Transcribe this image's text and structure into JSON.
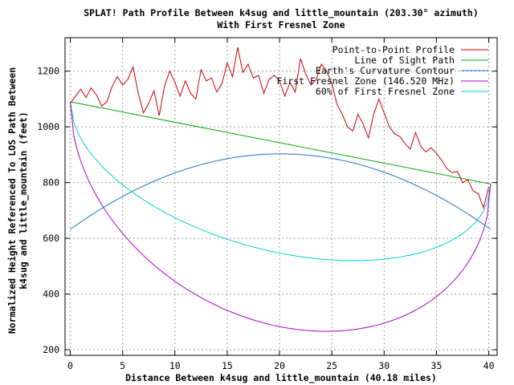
{
  "chart_data": {
    "type": "line",
    "title": "SPLAT! Path Profile Between k4sug and little_mountain (203.30° azimuth)",
    "subtitle": "With First Fresnel Zone",
    "xlabel": "Distance Between k4sug and little_mountain (40.18 miles)",
    "ylabel_lines": [
      "Normalized Height Referenced To LOS Path Between",
      "k4sug and little_mountain (feet)"
    ],
    "xlim": [
      -0.5,
      40.8
    ],
    "ylim": [
      180,
      1320
    ],
    "xticks": [
      0,
      5,
      10,
      15,
      20,
      25,
      30,
      35,
      40
    ],
    "yticks": [
      200,
      400,
      600,
      800,
      1000,
      1200
    ],
    "grid": true,
    "legend_position": "top-right",
    "series": [
      {
        "name": "Point-to-Point Profile",
        "color": "#cc0000",
        "points": [
          [
            0,
            1085
          ],
          [
            0.5,
            1110
          ],
          [
            1,
            1135
          ],
          [
            1.5,
            1105
          ],
          [
            2,
            1140
          ],
          [
            2.5,
            1115
          ],
          [
            3,
            1075
          ],
          [
            3.5,
            1090
          ],
          [
            4,
            1145
          ],
          [
            4.5,
            1180
          ],
          [
            5,
            1150
          ],
          [
            5.5,
            1170
          ],
          [
            6,
            1215
          ],
          [
            6.5,
            1120
          ],
          [
            7,
            1050
          ],
          [
            7.5,
            1085
          ],
          [
            8,
            1130
          ],
          [
            8.5,
            1040
          ],
          [
            9,
            1145
          ],
          [
            9.5,
            1200
          ],
          [
            10,
            1160
          ],
          [
            10.5,
            1110
          ],
          [
            11,
            1165
          ],
          [
            11.5,
            1120
          ],
          [
            12,
            1100
          ],
          [
            12.5,
            1205
          ],
          [
            13,
            1165
          ],
          [
            13.5,
            1175
          ],
          [
            14,
            1125
          ],
          [
            14.5,
            1155
          ],
          [
            15,
            1230
          ],
          [
            15.5,
            1180
          ],
          [
            16,
            1285
          ],
          [
            16.5,
            1195
          ],
          [
            17,
            1225
          ],
          [
            17.5,
            1175
          ],
          [
            18,
            1185
          ],
          [
            18.5,
            1120
          ],
          [
            19,
            1170
          ],
          [
            19.5,
            1185
          ],
          [
            20,
            1165
          ],
          [
            20.5,
            1110
          ],
          [
            21,
            1160
          ],
          [
            21.5,
            1125
          ],
          [
            22,
            1245
          ],
          [
            22.5,
            1190
          ],
          [
            23,
            1150
          ],
          [
            23.5,
            1170
          ],
          [
            24,
            1225
          ],
          [
            24.5,
            1200
          ],
          [
            25,
            1155
          ],
          [
            25.5,
            1080
          ],
          [
            26,
            1045
          ],
          [
            26.5,
            1000
          ],
          [
            27,
            985
          ],
          [
            27.5,
            1045
          ],
          [
            28,
            1010
          ],
          [
            28.5,
            960
          ],
          [
            29,
            1045
          ],
          [
            29.5,
            1100
          ],
          [
            30,
            1050
          ],
          [
            30.5,
            1000
          ],
          [
            31,
            975
          ],
          [
            31.5,
            965
          ],
          [
            32,
            940
          ],
          [
            32.5,
            920
          ],
          [
            33,
            980
          ],
          [
            33.5,
            930
          ],
          [
            34,
            910
          ],
          [
            34.5,
            925
          ],
          [
            35,
            905
          ],
          [
            35.5,
            880
          ],
          [
            36,
            850
          ],
          [
            36.5,
            835
          ],
          [
            37,
            840
          ],
          [
            37.5,
            800
          ],
          [
            38,
            810
          ],
          [
            38.5,
            770
          ],
          [
            39,
            760
          ],
          [
            39.5,
            710
          ],
          [
            40,
            785
          ]
        ]
      },
      {
        "name": "Line of Sight Path",
        "color": "#00aa00",
        "points": [
          [
            0,
            1090
          ],
          [
            40.18,
            795
          ]
        ]
      },
      {
        "name": "Earth's Curvature Contour",
        "color": "#1f6fd1",
        "curve": "parabola",
        "start": 632,
        "end": 632,
        "peak": 903
      },
      {
        "name": "First Fresnel Zone (146.520 MHz)",
        "color": "#b000d0",
        "curve": "fresnel",
        "radius_ft": 660,
        "fraction": 1.0
      },
      {
        "name": "60% of First Fresnel Zone",
        "color": "#00d0d0",
        "curve": "fresnel",
        "radius_ft": 660,
        "fraction": 0.6
      }
    ]
  }
}
